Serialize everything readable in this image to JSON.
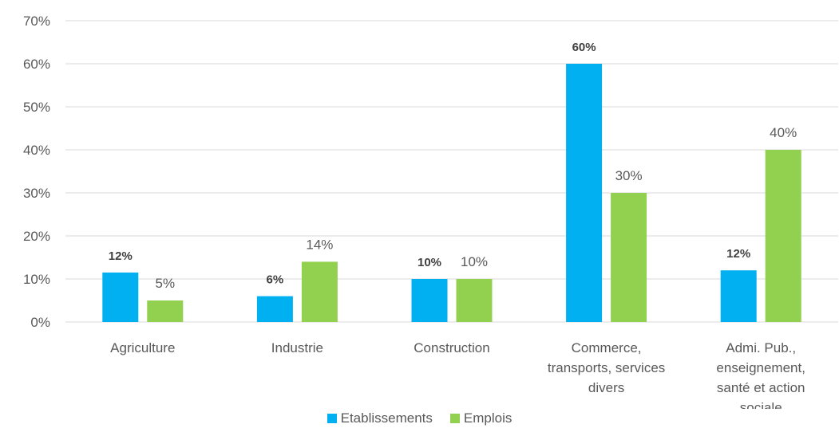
{
  "chart_data": {
    "type": "bar",
    "categories": [
      [
        "Agriculture"
      ],
      [
        "Industrie"
      ],
      [
        "Construction"
      ],
      [
        "Commerce,",
        "transports, services",
        "divers"
      ],
      [
        "Admi. Pub.,",
        "enseignement,",
        "santé et action",
        "sociale"
      ]
    ],
    "series": [
      {
        "name": "Etablissements",
        "color": "#00B0F0",
        "values": [
          0.115,
          0.06,
          0.1,
          0.6,
          0.12
        ],
        "labels": [
          "12%",
          "6%",
          "10%",
          "60%",
          "12%"
        ],
        "label_bold": true
      },
      {
        "name": "Emplois",
        "color": "#92D050",
        "values": [
          0.05,
          0.14,
          0.1,
          0.3,
          0.4
        ],
        "labels": [
          "5%",
          "14%",
          "10%",
          "30%",
          "40%"
        ],
        "label_bold": false
      }
    ],
    "ylim": [
      0,
      0.7
    ],
    "yticks": [
      "0%",
      "10%",
      "20%",
      "30%",
      "40%",
      "50%",
      "60%",
      "70%"
    ],
    "grid": true,
    "legend_position": "bottom"
  }
}
